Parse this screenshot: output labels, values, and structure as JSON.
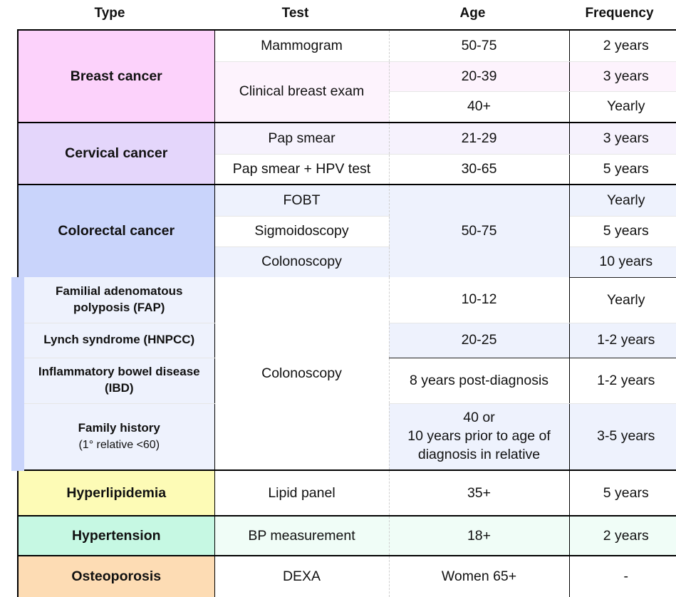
{
  "headers": {
    "type": "Type",
    "test": "Test",
    "age": "Age",
    "frequency": "Frequency"
  },
  "breast": {
    "type": "Breast cancer",
    "mammogram": {
      "test": "Mammogram",
      "age": "50-75",
      "freq": "2 years"
    },
    "clinical": {
      "test": "Clinical breast exam",
      "age1": "20-39",
      "freq1": "3 years",
      "age2": "40+",
      "freq2": "Yearly"
    }
  },
  "cervical": {
    "type": "Cervical cancer",
    "pap": {
      "test": "Pap smear",
      "age": "21-29",
      "freq": "3 years"
    },
    "pap_hpv": {
      "test": "Pap smear + HPV test",
      "age": "30-65",
      "freq": "5 years"
    }
  },
  "colorectal": {
    "type": "Colorectal cancer",
    "shared_age": "50-75",
    "fobt": {
      "test": "FOBT",
      "freq": "Yearly"
    },
    "sigmoid": {
      "test": "Sigmoidoscopy",
      "freq": "5 years"
    },
    "colonoscopy": {
      "test": "Colonoscopy",
      "freq": "10 years"
    },
    "highrisk_test": "Colonoscopy",
    "fap": {
      "type": "Familial adenomatous polyposis (FAP)",
      "age": "10-12",
      "freq": "Yearly"
    },
    "lynch": {
      "type": "Lynch syndrome (HNPCC)",
      "age": "20-25",
      "freq": "1-2 years"
    },
    "ibd": {
      "type": "Inflammatory bowel disease (IBD)",
      "age": "8 years post-diagnosis",
      "freq": "1-2 years"
    },
    "family": {
      "type": "Family history",
      "note": "(1° relative <60)",
      "age_line1": "40 or",
      "age_line2": "10 years prior to age of",
      "age_line3": "diagnosis in relative",
      "freq": "3-5 years"
    }
  },
  "hyperlipidemia": {
    "type": "Hyperlipidemia",
    "test": "Lipid panel",
    "age": "35+",
    "freq": "5 years"
  },
  "hypertension": {
    "type": "Hypertension",
    "test": "BP measurement",
    "age": "18+",
    "freq": "2 years"
  },
  "osteoporosis": {
    "type": "Osteoporosis",
    "test": "DEXA",
    "age": "Women 65+",
    "freq": "-"
  },
  "colors": {
    "breast_type": "#fcd2fb",
    "breast_tint": "#fdf3fd",
    "cervical_type": "#e4d6fb",
    "cervical_tint": "#f6f2fd",
    "colorectal_type": "#c9d4fb",
    "colorectal_tint": "#eef2fd",
    "hyperlipidemia_type": "#fdfbb6",
    "hypertension_type": "#c6f8e3",
    "hypertension_tint": "#f0fdf7",
    "osteoporosis_type": "#fddcb4"
  }
}
